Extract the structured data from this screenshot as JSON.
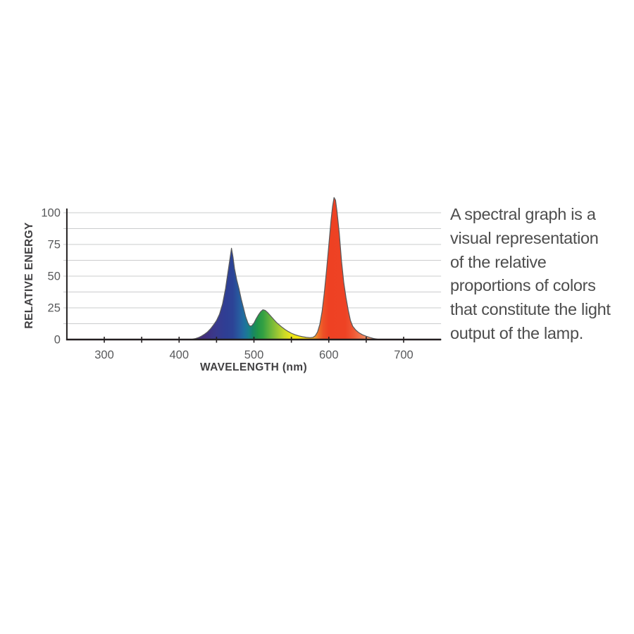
{
  "page": {
    "background": "#ffffff"
  },
  "description": {
    "lines": [
      "A spectral graph is a",
      "visual representation",
      "of the relative",
      "proportions of colors",
      "that constitute the light",
      "output of the lamp."
    ],
    "text": "A spectral graph is a visual representation of the relative proportions of colors that constitute the light output of the lamp.",
    "color": "#4d4d4d"
  },
  "chart_data": {
    "type": "area",
    "title": "",
    "xlabel": "WAVELENGTH (nm)",
    "ylabel": "RELATIVE ENERGY",
    "xlim": [
      250,
      750
    ],
    "ylim": [
      0,
      100
    ],
    "x_ticks_major": [
      300,
      400,
      500,
      600,
      700
    ],
    "x_ticks_minor": [
      350,
      450,
      550,
      650
    ],
    "y_ticks_labeled": [
      0,
      25,
      50,
      75,
      100
    ],
    "y_gridline_step": 12.5,
    "grid": true,
    "legend": false,
    "axis_color": "#231f20",
    "grid_color": "#cbcccd",
    "tick_label_color": "#58595b",
    "axis_label_color": "#414042",
    "curve_stroke": "#58595b",
    "peaks": [
      {
        "name": "blue peak",
        "wavelength": 470,
        "value": 72
      },
      {
        "name": "green peak",
        "wavelength": 513,
        "value": 24
      },
      {
        "name": "red peak",
        "wavelength": 608,
        "value": 112
      }
    ],
    "series": [
      {
        "name": "lamp spectral output",
        "points": [
          [
            250,
            0
          ],
          [
            300,
            0
          ],
          [
            350,
            0
          ],
          [
            400,
            0
          ],
          [
            412,
            0
          ],
          [
            418,
            0.3
          ],
          [
            422,
            0.8
          ],
          [
            426,
            1.6
          ],
          [
            430,
            2.8
          ],
          [
            434,
            4.2
          ],
          [
            438,
            6
          ],
          [
            442,
            8.5
          ],
          [
            446,
            11.5
          ],
          [
            450,
            15
          ],
          [
            454,
            20
          ],
          [
            458,
            28
          ],
          [
            462,
            40
          ],
          [
            465,
            52
          ],
          [
            468,
            64
          ],
          [
            470,
            72
          ],
          [
            472,
            65
          ],
          [
            474,
            56
          ],
          [
            477,
            47
          ],
          [
            480,
            40
          ],
          [
            483,
            32
          ],
          [
            486,
            25
          ],
          [
            489,
            18
          ],
          [
            492,
            13
          ],
          [
            494,
            11
          ],
          [
            496,
            10.5
          ],
          [
            498,
            11.5
          ],
          [
            500,
            13
          ],
          [
            503,
            16.5
          ],
          [
            506,
            19.5
          ],
          [
            509,
            22
          ],
          [
            512,
            23.5
          ],
          [
            515,
            23
          ],
          [
            518,
            21.5
          ],
          [
            521,
            19.5
          ],
          [
            524,
            17.5
          ],
          [
            527,
            15.5
          ],
          [
            530,
            13.5
          ],
          [
            534,
            11.5
          ],
          [
            538,
            9.5
          ],
          [
            542,
            7.8
          ],
          [
            546,
            6.3
          ],
          [
            550,
            5
          ],
          [
            555,
            3.8
          ],
          [
            560,
            2.9
          ],
          [
            565,
            2.2
          ],
          [
            570,
            1.7
          ],
          [
            575,
            1.5
          ],
          [
            579,
            1.8
          ],
          [
            582,
            3
          ],
          [
            585,
            6
          ],
          [
            588,
            12
          ],
          [
            591,
            22
          ],
          [
            594,
            37
          ],
          [
            597,
            55
          ],
          [
            600,
            74
          ],
          [
            603,
            94
          ],
          [
            605,
            105
          ],
          [
            607,
            112
          ],
          [
            609,
            110
          ],
          [
            611,
            101
          ],
          [
            614,
            84
          ],
          [
            617,
            62
          ],
          [
            620,
            45
          ],
          [
            623,
            33
          ],
          [
            626,
            23
          ],
          [
            629,
            15
          ],
          [
            632,
            10.5
          ],
          [
            636,
            7.5
          ],
          [
            640,
            5.5
          ],
          [
            645,
            3.8
          ],
          [
            650,
            2.6
          ],
          [
            655,
            1.6
          ],
          [
            660,
            0.8
          ],
          [
            665,
            0.3
          ],
          [
            670,
            0
          ],
          [
            700,
            0
          ],
          [
            750,
            0
          ]
        ]
      }
    ],
    "spectrum_gradient": [
      [
        415,
        "#4a2a6e"
      ],
      [
        435,
        "#41307f"
      ],
      [
        450,
        "#383a8e"
      ],
      [
        462,
        "#2f3e94"
      ],
      [
        472,
        "#2c4496"
      ],
      [
        480,
        "#275a9f"
      ],
      [
        487,
        "#1f6f9f"
      ],
      [
        493,
        "#187f8c"
      ],
      [
        498,
        "#178667"
      ],
      [
        505,
        "#219548"
      ],
      [
        512,
        "#33a043"
      ],
      [
        520,
        "#5fb13c"
      ],
      [
        530,
        "#93c335"
      ],
      [
        540,
        "#c8d829"
      ],
      [
        548,
        "#e7e31c"
      ],
      [
        558,
        "#f4e612"
      ],
      [
        568,
        "#f3dc13"
      ],
      [
        576,
        "#f2bb1b"
      ],
      [
        582,
        "#f0962a"
      ],
      [
        587,
        "#ef6b2b"
      ],
      [
        593,
        "#ee4f26"
      ],
      [
        600,
        "#ee4123"
      ],
      [
        622,
        "#ee4224"
      ],
      [
        632,
        "#ef5633"
      ],
      [
        642,
        "#f0744d"
      ],
      [
        652,
        "#f29067"
      ],
      [
        662,
        "#f4a587"
      ]
    ]
  }
}
